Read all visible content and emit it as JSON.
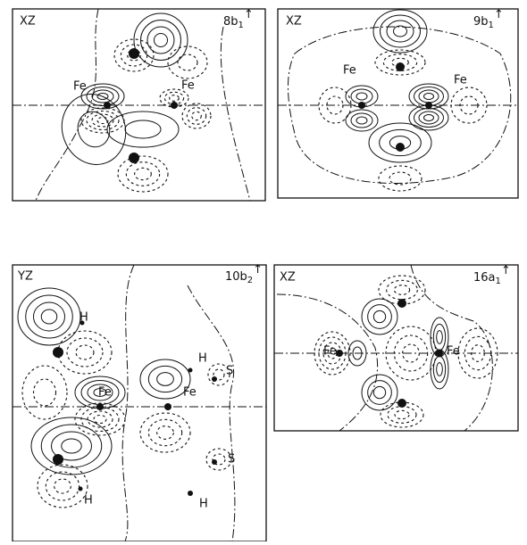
{
  "panels": [
    {
      "plane": "XZ",
      "orbital": {
        "name": "8b",
        "subscript": "1",
        "spin": "↑"
      },
      "atoms": [
        "Fe",
        "Fe"
      ]
    },
    {
      "plane": "XZ",
      "orbital": {
        "name": "9b",
        "subscript": "1",
        "spin": "↑"
      },
      "atoms": [
        "Fe",
        "Fe"
      ]
    },
    {
      "plane": "YZ",
      "orbital": {
        "name": "10b",
        "subscript": "2",
        "spin": "↑"
      },
      "atoms": [
        "H",
        "H",
        "S",
        "Fe",
        "Fe",
        "S",
        "H",
        "H"
      ]
    },
    {
      "plane": "XZ",
      "orbital": {
        "name": "16a",
        "subscript": "1",
        "spin": "↑"
      },
      "atoms": [
        "Fe",
        "Fe"
      ]
    }
  ]
}
